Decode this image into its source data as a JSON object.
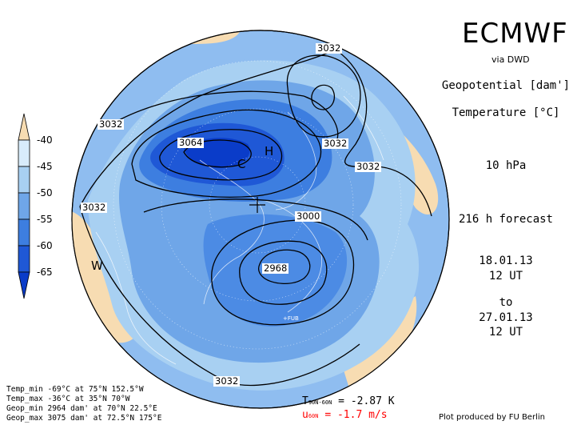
{
  "header": {
    "brand": "ECMWF",
    "source": "via DWD",
    "field1": "Geopotential [dam']",
    "field2": "Temperature [°C]",
    "level": "10 hPa",
    "forecast": "216 h forecast",
    "init_date": "18.01.13",
    "init_time": "12 UT",
    "to": "to",
    "valid_date": "27.01.13",
    "valid_time": "12 UT"
  },
  "colorbar": {
    "labels": [
      "-40",
      "-45",
      "-50",
      "-55",
      "-60",
      "-65"
    ],
    "colors": [
      "#f7dcb2",
      "#d8ecfb",
      "#a8d0f2",
      "#6fa6e8",
      "#3d7ee0",
      "#1f58d6",
      "#0a3cc9"
    ]
  },
  "map": {
    "contour_labels": [
      "3032",
      "3032",
      "3032",
      "3032",
      "3032",
      "3032",
      "3064",
      "3000",
      "2968"
    ],
    "symbols": [
      "H",
      "C",
      "W"
    ],
    "station": "+FUB"
  },
  "stats": {
    "temp_min": "Temp_min -69°C at 75°N 152.5°W",
    "temp_max": "Temp_max -36°C at 35°N 70°W",
    "geop_min": "Geop_min 2964 dam' at 70°N 22.5°E",
    "geop_max": "Geop_max 3075 dam' at 72.5°N 175°E"
  },
  "means": {
    "t_symbol": "T",
    "t_sub": "90N-60N",
    "t_value": "= -2.87 K",
    "u_symbol": "u",
    "u_sub": "60N",
    "u_value": "= -1.7 m/s",
    "u_color": "#ff0000"
  },
  "credit": "Plot produced by FU Berlin"
}
